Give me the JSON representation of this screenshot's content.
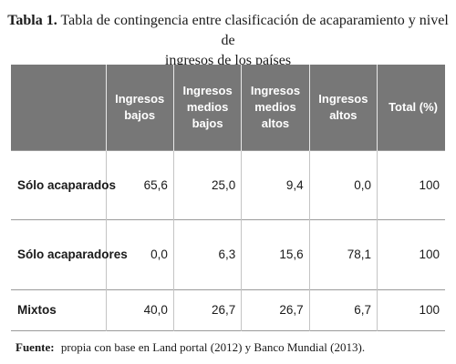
{
  "caption": {
    "label": "Tabla 1.",
    "title_line1": "Tabla de contingencia entre clasificación de acaparamiento y nivel de",
    "title_line2": "ingresos de los países"
  },
  "table": {
    "headers": [
      "",
      "Ingresos bajos",
      "Ingresos medios bajos",
      "Ingresos medios altos",
      "Ingresos altos",
      "Total (%)"
    ],
    "rows": [
      {
        "label": "Sólo acaparados",
        "values": [
          "65,6",
          "25,0",
          "9,4",
          "0,0",
          "100"
        ]
      },
      {
        "label": "Sólo acaparadores",
        "values": [
          "0,0",
          "6,3",
          "15,6",
          "78,1",
          "100"
        ]
      },
      {
        "label": "Mixtos",
        "values": [
          "40,0",
          "26,7",
          "26,7",
          "6,7",
          "100"
        ]
      }
    ]
  },
  "source": {
    "label": "Fuente:",
    "text": "propia con base en Land portal (2012) y Banco Mundial (2013)."
  }
}
